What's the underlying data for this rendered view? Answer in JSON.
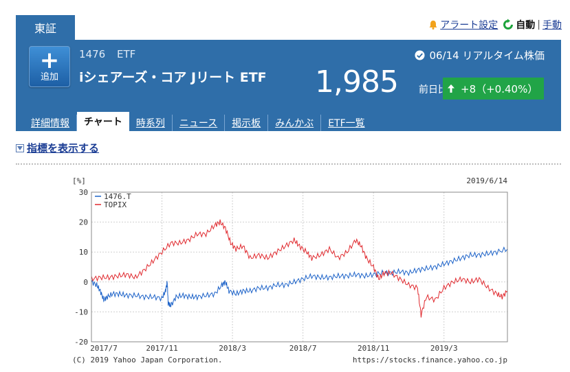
{
  "exchange_tab": "東証",
  "top_links": {
    "alert": "アラート設定",
    "auto": "自動",
    "separator": "|",
    "manual": "手動"
  },
  "header": {
    "code": "1476",
    "category": "ETF",
    "name": "iシェアーズ・コア Jリート ETF",
    "datetime": "06/14 リアルタイム株価",
    "price": "1,985",
    "diff_label": "前日比",
    "change": "+8（+0.40%）",
    "add_button": {
      "plus": "+",
      "label": "追加"
    }
  },
  "nav": {
    "items": [
      {
        "label": "詳細情報"
      },
      {
        "label": "チャート"
      },
      {
        "label": "時系列"
      },
      {
        "label": "ニュース"
      },
      {
        "label": "掲示板"
      },
      {
        "label": "みんかぶ"
      },
      {
        "label": "ETF一覧"
      }
    ],
    "active_index": 1
  },
  "indicator_toggle": "指標を表示する",
  "colors": {
    "header_blue": "#2f6ea9",
    "up_green": "#21a447",
    "series_etf": "#1c62c8",
    "series_topix": "#e0292e"
  },
  "chart_data": {
    "type": "line",
    "unit_label": "[%]",
    "date_label": "2019/6/14",
    "ylim": [
      -20,
      30
    ],
    "y_ticks": [
      30,
      20,
      10,
      0,
      -10,
      -20
    ],
    "x_ticks": [
      {
        "label": "2017/7",
        "month_offset": 0
      },
      {
        "label": "2017/11",
        "month_offset": 4
      },
      {
        "label": "2018/3",
        "month_offset": 8
      },
      {
        "label": "2018/7",
        "month_offset": 12
      },
      {
        "label": "2018/11",
        "month_offset": 16
      },
      {
        "label": "2019/3",
        "month_offset": 20
      }
    ],
    "x_range_months": [
      0,
      23.6
    ],
    "grid": true,
    "legend_position": "top-left",
    "copyright": "(C) 2019 Yahoo Japan Corporation.",
    "source": "https://stocks.finance.yahoo.co.jp",
    "series": [
      {
        "name": "1476.T",
        "color": "#1c62c8",
        "points": [
          [
            0,
            0
          ],
          [
            0.3,
            -1
          ],
          [
            0.5,
            -3
          ],
          [
            0.7,
            -6
          ],
          [
            0.9,
            -5
          ],
          [
            1.2,
            -4
          ],
          [
            1.6,
            -4
          ],
          [
            2.0,
            -4.5
          ],
          [
            2.5,
            -4.5
          ],
          [
            3.0,
            -5
          ],
          [
            3.5,
            -5
          ],
          [
            4.0,
            -5.5
          ],
          [
            4.2,
            -3
          ],
          [
            4.3,
            0
          ],
          [
            4.35,
            -7
          ],
          [
            4.5,
            -8
          ],
          [
            4.8,
            -5
          ],
          [
            5.2,
            -4.5
          ],
          [
            5.6,
            -5
          ],
          [
            6.0,
            -5
          ],
          [
            6.5,
            -4.5
          ],
          [
            7.0,
            -4
          ],
          [
            7.4,
            -1
          ],
          [
            7.6,
            0
          ],
          [
            7.8,
            -3
          ],
          [
            8.2,
            -4
          ],
          [
            8.6,
            -3
          ],
          [
            9.0,
            -3
          ],
          [
            9.5,
            -2
          ],
          [
            10.0,
            -2
          ],
          [
            10.5,
            -1
          ],
          [
            11.0,
            -1
          ],
          [
            11.5,
            0
          ],
          [
            12.0,
            1
          ],
          [
            12.5,
            2
          ],
          [
            13.0,
            1.5
          ],
          [
            13.5,
            1.5
          ],
          [
            14.0,
            2
          ],
          [
            14.5,
            2
          ],
          [
            15.0,
            2.5
          ],
          [
            15.5,
            2
          ],
          [
            16.0,
            2.5
          ],
          [
            16.5,
            3
          ],
          [
            17.0,
            3
          ],
          [
            17.5,
            3.5
          ],
          [
            18.0,
            3
          ],
          [
            18.5,
            4
          ],
          [
            19.0,
            4.5
          ],
          [
            19.5,
            5
          ],
          [
            20.0,
            6
          ],
          [
            20.5,
            7
          ],
          [
            21.0,
            8
          ],
          [
            21.5,
            9
          ],
          [
            22.0,
            9
          ],
          [
            22.5,
            9.5
          ],
          [
            23.0,
            10
          ],
          [
            23.6,
            11
          ]
        ]
      },
      {
        "name": "TOPIX",
        "color": "#e0292e",
        "points": [
          [
            0,
            1
          ],
          [
            0.5,
            1.5
          ],
          [
            1.0,
            1.5
          ],
          [
            1.5,
            2
          ],
          [
            2.0,
            2.5
          ],
          [
            2.5,
            1.5
          ],
          [
            3.0,
            4
          ],
          [
            3.5,
            7
          ],
          [
            4.0,
            10
          ],
          [
            4.5,
            13
          ],
          [
            5.0,
            13
          ],
          [
            5.5,
            14
          ],
          [
            6.0,
            16
          ],
          [
            6.5,
            16
          ],
          [
            7.0,
            19
          ],
          [
            7.3,
            20
          ],
          [
            7.6,
            18
          ],
          [
            7.9,
            13
          ],
          [
            8.2,
            11
          ],
          [
            8.6,
            12
          ],
          [
            9.0,
            8
          ],
          [
            9.5,
            9
          ],
          [
            10.0,
            8
          ],
          [
            10.5,
            10
          ],
          [
            11.0,
            12
          ],
          [
            11.5,
            14
          ],
          [
            11.8,
            12
          ],
          [
            12.2,
            10
          ],
          [
            12.5,
            8
          ],
          [
            13.0,
            9
          ],
          [
            13.5,
            11
          ],
          [
            14.0,
            8
          ],
          [
            14.5,
            10
          ],
          [
            15.0,
            14
          ],
          [
            15.3,
            12
          ],
          [
            15.6,
            8
          ],
          [
            16.0,
            5
          ],
          [
            16.3,
            1
          ],
          [
            16.6,
            3
          ],
          [
            17.0,
            3
          ],
          [
            17.5,
            1
          ],
          [
            18.0,
            -1
          ],
          [
            18.5,
            -2
          ],
          [
            18.7,
            -11
          ],
          [
            19.0,
            -5
          ],
          [
            19.5,
            -6
          ],
          [
            20.0,
            -2
          ],
          [
            20.5,
            0
          ],
          [
            21.0,
            1
          ],
          [
            21.5,
            0
          ],
          [
            22.0,
            1
          ],
          [
            22.5,
            -2
          ],
          [
            23.0,
            -4
          ],
          [
            23.3,
            -5
          ],
          [
            23.6,
            -3
          ]
        ]
      }
    ]
  }
}
